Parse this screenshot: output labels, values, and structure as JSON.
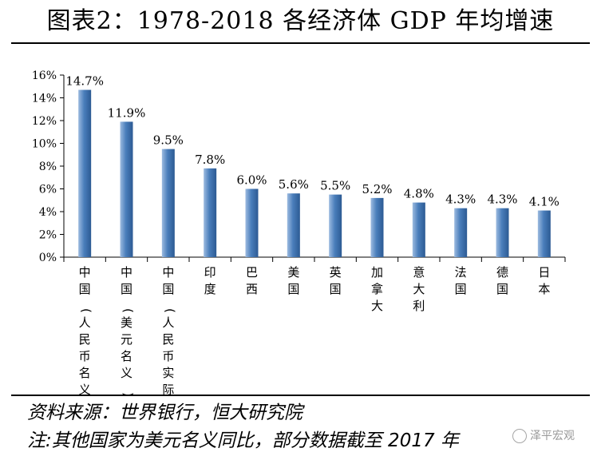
{
  "title": "图表2：1978-2018 各经济体 GDP 年均增速",
  "chart_data": {
    "type": "bar",
    "title": "图表2：1978-2018 各经济体 GDP 年均增速",
    "categories": [
      "中国(人民币名义)",
      "中国(美元名义)",
      "中国(人民币实际)",
      "印度",
      "巴西",
      "美国",
      "英国",
      "加拿大",
      "意大利",
      "法国",
      "德国",
      "日本"
    ],
    "values": [
      14.7,
      11.9,
      9.5,
      7.8,
      6.0,
      5.6,
      5.5,
      5.2,
      4.8,
      4.3,
      4.3,
      4.1
    ],
    "value_labels": [
      "14.7%",
      "11.9%",
      "9.5%",
      "7.8%",
      "6.0%",
      "5.6%",
      "5.5%",
      "5.2%",
      "4.8%",
      "4.3%",
      "4.3%",
      "4.1%"
    ],
    "y_ticks": [
      "0%",
      "2%",
      "4%",
      "6%",
      "8%",
      "10%",
      "12%",
      "14%",
      "16%"
    ],
    "ylim": [
      0,
      16
    ],
    "xlabel": "",
    "ylabel": "",
    "grid": false,
    "bar_color": "#4a7ebb"
  },
  "source_note": "资料来源：世界银行，恒大研究院",
  "footnote": "注:其他国家为美元名义同比，部分数据截至 2017 年",
  "watermark": "泽平宏观"
}
